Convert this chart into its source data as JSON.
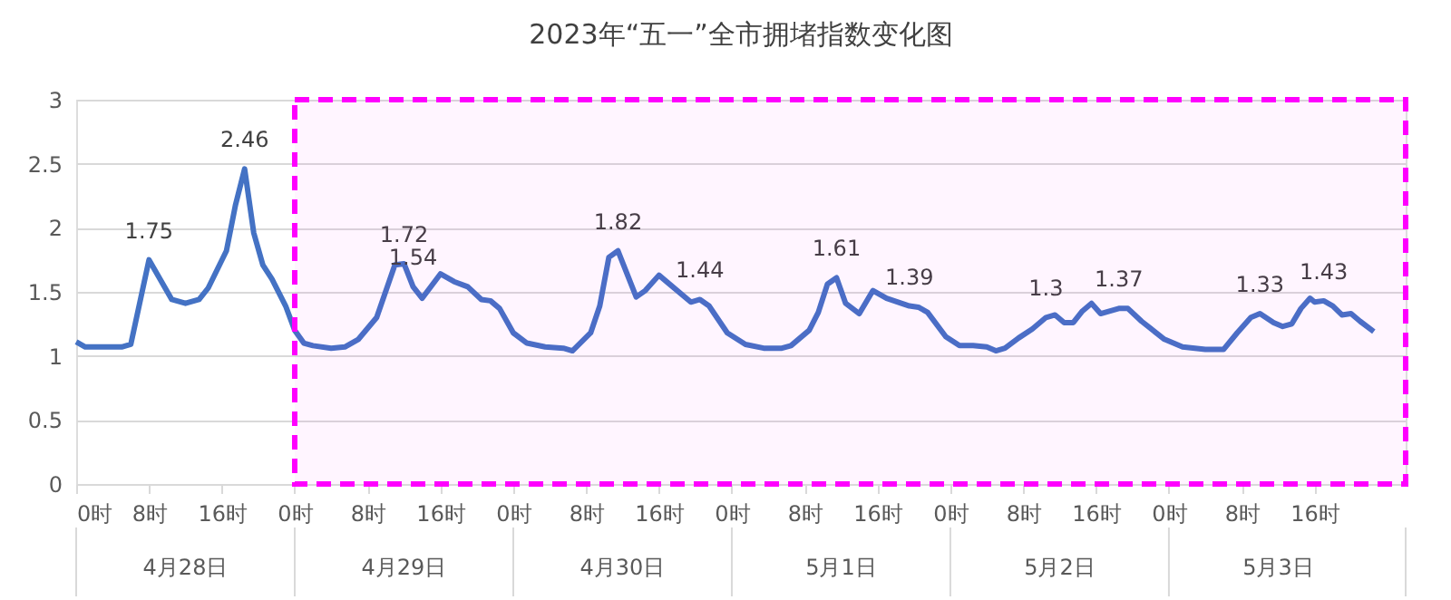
{
  "chart_data": {
    "type": "line",
    "title": "2023年“五一”全市拥堵指数变化图",
    "x": [
      "2023-04-28T00:00",
      "2023-04-28T01:00",
      "2023-04-28T05:00",
      "2023-04-28T06:00",
      "2023-04-28T08:00",
      "2023-04-28T10:30",
      "2023-04-28T12:00",
      "2023-04-28T13:30",
      "2023-04-28T14:30",
      "2023-04-28T16:30",
      "2023-04-28T17:30",
      "2023-04-28T18:30",
      "2023-04-28T19:30",
      "2023-04-28T20:30",
      "2023-04-28T21:30",
      "2023-04-28T23:00",
      "2023-04-29T00:00",
      "2023-04-29T01:00",
      "2023-04-29T02:00",
      "2023-04-29T04:00",
      "2023-04-29T05:30",
      "2023-04-29T07:00",
      "2023-04-29T09:00",
      "2023-04-29T11:00",
      "2023-04-29T12:00",
      "2023-04-29T13:00",
      "2023-04-29T14:00",
      "2023-04-29T16:00",
      "2023-04-29T17:30",
      "2023-04-29T19:00",
      "2023-04-29T20:30",
      "2023-04-29T21:30",
      "2023-04-29T22:30",
      "2023-04-30T00:00",
      "2023-04-30T01:30",
      "2023-04-30T03:30",
      "2023-04-30T05:30",
      "2023-04-30T06:30",
      "2023-04-30T08:30",
      "2023-04-30T09:30",
      "2023-04-30T10:30",
      "2023-04-30T11:30",
      "2023-04-30T13:30",
      "2023-04-30T14:30",
      "2023-04-30T16:00",
      "2023-04-30T17:00",
      "2023-04-30T19:30",
      "2023-04-30T20:30",
      "2023-04-30T21:30",
      "2023-04-30T23:30",
      "2023-05-01T01:30",
      "2023-05-01T03:30",
      "2023-05-01T05:30",
      "2023-05-01T06:30",
      "2023-05-01T08:30",
      "2023-05-01T09:30",
      "2023-05-01T10:30",
      "2023-05-01T11:30",
      "2023-05-01T12:30",
      "2023-05-01T14:00",
      "2023-05-01T15:00",
      "2023-05-01T15:30",
      "2023-05-01T17:00",
      "2023-05-01T19:30",
      "2023-05-01T20:30",
      "2023-05-01T21:30",
      "2023-05-01T23:30",
      "2023-05-02T01:00",
      "2023-05-02T02:30",
      "2023-05-02T04:00",
      "2023-05-02T05:00",
      "2023-05-02T06:00",
      "2023-05-02T07:30",
      "2023-05-02T09:00",
      "2023-05-02T10:30",
      "2023-05-02T11:30",
      "2023-05-02T12:30",
      "2023-05-02T13:30",
      "2023-05-02T14:30",
      "2023-05-02T15:30",
      "2023-05-02T16:30",
      "2023-05-02T18:30",
      "2023-05-02T19:30",
      "2023-05-02T21:00",
      "2023-05-02T23:30",
      "2023-05-03T01:30",
      "2023-05-03T04:00",
      "2023-05-03T06:00",
      "2023-05-03T07:30",
      "2023-05-03T09:00",
      "2023-05-03T10:00",
      "2023-05-03T11:30",
      "2023-05-03T12:30",
      "2023-05-03T13:30",
      "2023-05-03T14:30",
      "2023-05-03T15:30",
      "2023-05-03T16:00",
      "2023-05-03T17:00",
      "2023-05-03T18:00",
      "2023-05-03T19:00",
      "2023-05-03T20:00",
      "2023-05-03T21:00",
      "2023-05-03T22:30"
    ],
    "series": [
      {
        "color": "#4472c4",
        "values": [
          1.11,
          1.07,
          1.07,
          1.09,
          1.75,
          1.44,
          1.41,
          1.44,
          1.53,
          1.82,
          2.18,
          2.46,
          1.96,
          1.71,
          1.6,
          1.39,
          1.2,
          1.1,
          1.08,
          1.06,
          1.07,
          1.13,
          1.3,
          1.71,
          1.72,
          1.54,
          1.45,
          1.64,
          1.58,
          1.54,
          1.44,
          1.43,
          1.37,
          1.18,
          1.1,
          1.07,
          1.06,
          1.04,
          1.18,
          1.39,
          1.77,
          1.82,
          1.46,
          1.51,
          1.63,
          1.57,
          1.42,
          1.44,
          1.39,
          1.18,
          1.09,
          1.06,
          1.06,
          1.08,
          1.2,
          1.34,
          1.56,
          1.61,
          1.41,
          1.33,
          1.45,
          1.51,
          1.45,
          1.39,
          1.38,
          1.34,
          1.15,
          1.08,
          1.08,
          1.07,
          1.04,
          1.06,
          1.14,
          1.21,
          1.3,
          1.32,
          1.26,
          1.26,
          1.35,
          1.41,
          1.33,
          1.37,
          1.37,
          1.27,
          1.13,
          1.07,
          1.05,
          1.05,
          1.18,
          1.3,
          1.33,
          1.26,
          1.23,
          1.25,
          1.37,
          1.45,
          1.42,
          1.43,
          1.39,
          1.32,
          1.33,
          1.27,
          1.19
        ],
        "value_labels": [
          null,
          null,
          null,
          null,
          "1.75",
          null,
          null,
          null,
          null,
          null,
          null,
          "2.46",
          null,
          null,
          null,
          null,
          null,
          null,
          null,
          null,
          null,
          null,
          null,
          null,
          "1.72",
          "1.54",
          null,
          null,
          null,
          null,
          null,
          null,
          null,
          null,
          null,
          null,
          null,
          null,
          null,
          null,
          null,
          "1.82",
          null,
          null,
          null,
          null,
          null,
          "1.44",
          null,
          null,
          null,
          null,
          null,
          null,
          null,
          null,
          null,
          "1.61",
          null,
          null,
          null,
          null,
          null,
          "1.39",
          null,
          null,
          null,
          null,
          null,
          null,
          null,
          null,
          null,
          null,
          "1.3",
          null,
          null,
          null,
          null,
          null,
          null,
          "1.37",
          null,
          null,
          null,
          null,
          null,
          null,
          null,
          null,
          "1.33",
          null,
          null,
          null,
          null,
          null,
          null,
          "1.43",
          null,
          null,
          null,
          null,
          null
        ]
      }
    ],
    "xlim": [
      "2023-04-28T00:00",
      "2023-05-04T02:00"
    ],
    "xticks": [
      {
        "value": "2023-04-28T00:00",
        "label": "0时"
      },
      {
        "value": "2023-04-28T08:00",
        "label": "8时"
      },
      {
        "value": "2023-04-28T16:00",
        "label": "16时"
      },
      {
        "value": "2023-04-29T00:00",
        "label": "0时"
      },
      {
        "value": "2023-04-29T08:00",
        "label": "8时"
      },
      {
        "value": "2023-04-29T16:00",
        "label": "16时"
      },
      {
        "value": "2023-04-30T00:00",
        "label": "0时"
      },
      {
        "value": "2023-04-30T08:00",
        "label": "8时"
      },
      {
        "value": "2023-04-30T16:00",
        "label": "16时"
      },
      {
        "value": "2023-05-01T00:00",
        "label": "0时"
      },
      {
        "value": "2023-05-01T08:00",
        "label": "8时"
      },
      {
        "value": "2023-05-01T16:00",
        "label": "16时"
      },
      {
        "value": "2023-05-02T00:00",
        "label": "0时"
      },
      {
        "value": "2023-05-02T08:00",
        "label": "8时"
      },
      {
        "value": "2023-05-02T16:00",
        "label": "16时"
      },
      {
        "value": "2023-05-03T00:00",
        "label": "0时"
      },
      {
        "value": "2023-05-03T08:00",
        "label": "8时"
      },
      {
        "value": "2023-05-03T16:00",
        "label": "16时"
      }
    ],
    "ylim": [
      0,
      3
    ],
    "yticks": [
      0,
      0.5,
      1,
      1.5,
      2,
      2.5,
      3
    ],
    "grid": "y",
    "bands": [
      {
        "axis": "x",
        "from": "2023-04-29T00:00",
        "to": "2023-05-04T02:00",
        "color": "#ff00ff"
      }
    ],
    "annotations": [
      "4月28日",
      "4月29日",
      "4月30日",
      "5月1日",
      "5月2日",
      "5月3日"
    ]
  }
}
